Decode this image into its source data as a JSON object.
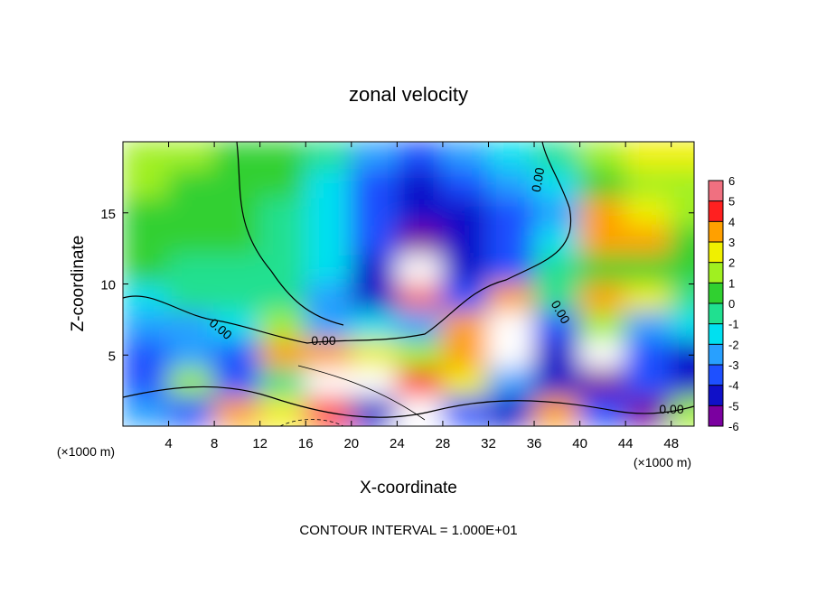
{
  "chart_data": {
    "type": "heatmap",
    "title": "zonal velocity",
    "xlabel": "X-coordinate",
    "ylabel": "Z-coordinate",
    "xunit": "(×1000 m)",
    "footer": "CONTOUR INTERVAL = 1.000E+01",
    "contour_labels": [
      "0.00",
      "0.00",
      "0.00",
      "0.00",
      "0.00"
    ],
    "xlim": [
      0,
      50
    ],
    "ylim": [
      0,
      20
    ],
    "xticks": [
      4,
      8,
      12,
      16,
      20,
      24,
      28,
      32,
      36,
      40,
      44,
      48
    ],
    "yticks": [
      5,
      10,
      15
    ],
    "x": [
      2,
      6,
      10,
      14,
      18,
      22,
      26,
      30,
      34,
      38,
      42,
      46,
      50
    ],
    "y": [
      19,
      17,
      15,
      13,
      11,
      9,
      7,
      5,
      3,
      1
    ],
    "values": [
      [
        2,
        1.5,
        1,
        0.5,
        0,
        -2,
        -3,
        -2,
        -1.5,
        -0.5,
        2,
        3,
        3
      ],
      [
        1.5,
        1,
        1,
        0.5,
        -1,
        -3,
        -4,
        -3,
        -2,
        -1,
        1,
        2,
        2
      ],
      [
        1,
        1,
        0.5,
        0,
        -1,
        -3,
        -4,
        -4,
        -3,
        -2,
        4,
        3,
        2
      ],
      [
        1,
        0.5,
        0.5,
        0,
        -1,
        -3,
        -5,
        -4,
        -3,
        -1,
        4,
        4,
        1
      ],
      [
        0.5,
        0,
        0,
        0,
        -1,
        -4,
        7,
        -4,
        -3,
        0,
        1,
        1,
        0.5
      ],
      [
        -1,
        0,
        0,
        -0.5,
        -2,
        -4,
        6,
        -3,
        4,
        0,
        4,
        3,
        -0.5
      ],
      [
        -2,
        -2,
        -1,
        2,
        -2,
        -1,
        -2,
        4,
        7,
        -3,
        2,
        -2,
        -1
      ],
      [
        -3,
        -2,
        -3,
        4,
        4,
        3,
        2,
        4,
        8,
        -4,
        7,
        -3,
        -4
      ],
      [
        -3,
        2,
        -3,
        0,
        8,
        8,
        5,
        3,
        -2,
        -4,
        -5,
        -3,
        -4
      ],
      [
        -2,
        -3,
        4,
        3,
        5,
        -4,
        7,
        -3,
        -4,
        4,
        -3,
        -5,
        2
      ]
    ],
    "colorbar": {
      "ticks": [
        -6,
        -5,
        -4,
        -3,
        -2,
        -1,
        0,
        1,
        2,
        3,
        4,
        5,
        6
      ],
      "colors": [
        "#7b00a0",
        "#1010c8",
        "#1e50ff",
        "#28a0ff",
        "#00e0f0",
        "#20e090",
        "#30d030",
        "#a0f020",
        "#f0f000",
        "#ffa000",
        "#ff2020",
        "#f07080"
      ]
    }
  }
}
